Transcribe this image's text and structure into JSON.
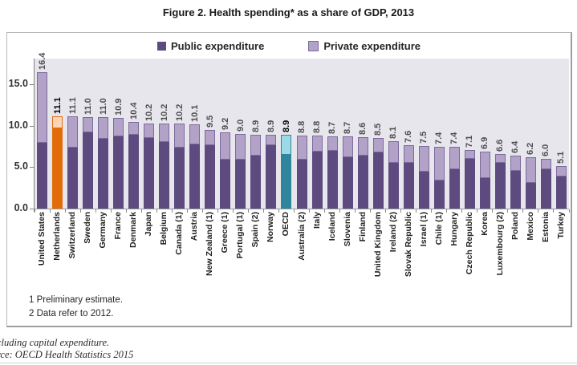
{
  "figure_title": "Figure 2. Health spending* as a share of GDP, 2013",
  "legend": {
    "public_label": "Public expenditure",
    "private_label": "Private expenditure"
  },
  "footnotes": {
    "line1": "1 Preliminary estimate.",
    "line2": "2 Data refer to 2012."
  },
  "caption": {
    "line1": "cluding capital expenditure.",
    "line2": "rce: OECD Health Statistics 2015"
  },
  "colors": {
    "public_fill": "#5D4A7E",
    "private_fill": "#B3A2C8",
    "private_border": "#7C6A9C",
    "orange_public": "#E36C0A",
    "orange_private": "#FBD5B5",
    "teal_public": "#2F859B",
    "teal_private": "#9CD9E6",
    "plot_background": "#E8E6ED"
  },
  "chart_data": {
    "type": "bar",
    "stacked": true,
    "title": "Figure 2. Health spending* as a share of GDP, 2013",
    "xlabel": "",
    "ylabel": "",
    "ylim": [
      0,
      18
    ],
    "yticks": [
      "0.0",
      "5.0",
      "10.0",
      "15.0"
    ],
    "ytick_values": [
      0,
      5,
      10,
      15
    ],
    "grid": false,
    "legend_position": "top-center",
    "categories": [
      "United States",
      "Netherlands",
      "Switzerland",
      "Sweden",
      "Germany",
      "France",
      "Denmark",
      "Japan",
      "Belgium",
      "Canada (1)",
      "Austria",
      "New Zealand (1)",
      "Greece (1)",
      "Portugal (1)",
      "Spain (2)",
      "Norway",
      "OECD",
      "Australia (2)",
      "Italy",
      "Iceland",
      "Slovenia",
      "Finland",
      "United Kingdom",
      "Ireland (2)",
      "Slovak Republic",
      "Israel (1)",
      "Chile (1)",
      "Hungary",
      "Czech Republic",
      "Korea",
      "Luxembourg (2)",
      "Poland",
      "Mexico",
      "Estonia",
      "Turkey"
    ],
    "series": [
      {
        "name": "Public expenditure",
        "values": [
          7.9,
          9.7,
          7.3,
          9.2,
          8.4,
          8.7,
          8.9,
          8.5,
          8.0,
          7.3,
          7.7,
          7.6,
          5.9,
          5.9,
          6.4,
          7.6,
          6.5,
          5.9,
          6.9,
          7.0,
          6.2,
          6.4,
          6.8,
          5.5,
          5.5,
          4.4,
          3.4,
          4.7,
          6.0,
          3.7,
          5.5,
          4.5,
          3.1,
          4.7,
          3.9
        ]
      },
      {
        "name": "Private expenditure",
        "values": [
          8.5,
          1.4,
          3.8,
          1.8,
          2.6,
          2.2,
          1.5,
          1.7,
          2.2,
          2.9,
          2.4,
          1.9,
          3.3,
          3.1,
          2.5,
          1.3,
          2.4,
          2.9,
          1.9,
          1.7,
          2.5,
          2.2,
          1.7,
          2.6,
          2.1,
          3.1,
          4.0,
          2.7,
          1.1,
          3.2,
          1.1,
          1.9,
          3.1,
          1.3,
          1.2
        ]
      }
    ],
    "totals": [
      16.4,
      11.1,
      11.1,
      11.0,
      11.0,
      10.9,
      10.4,
      10.2,
      10.2,
      10.2,
      10.1,
      9.5,
      9.2,
      9.0,
      8.9,
      8.9,
      8.9,
      8.8,
      8.8,
      8.7,
      8.7,
      8.6,
      8.5,
      8.1,
      7.6,
      7.5,
      7.4,
      7.4,
      7.1,
      6.9,
      6.6,
      6.4,
      6.2,
      6.0,
      5.1
    ],
    "highlight": {
      "orange_index": 1,
      "orange_category": "Netherlands",
      "teal_index": 16,
      "teal_category": "OECD"
    }
  }
}
